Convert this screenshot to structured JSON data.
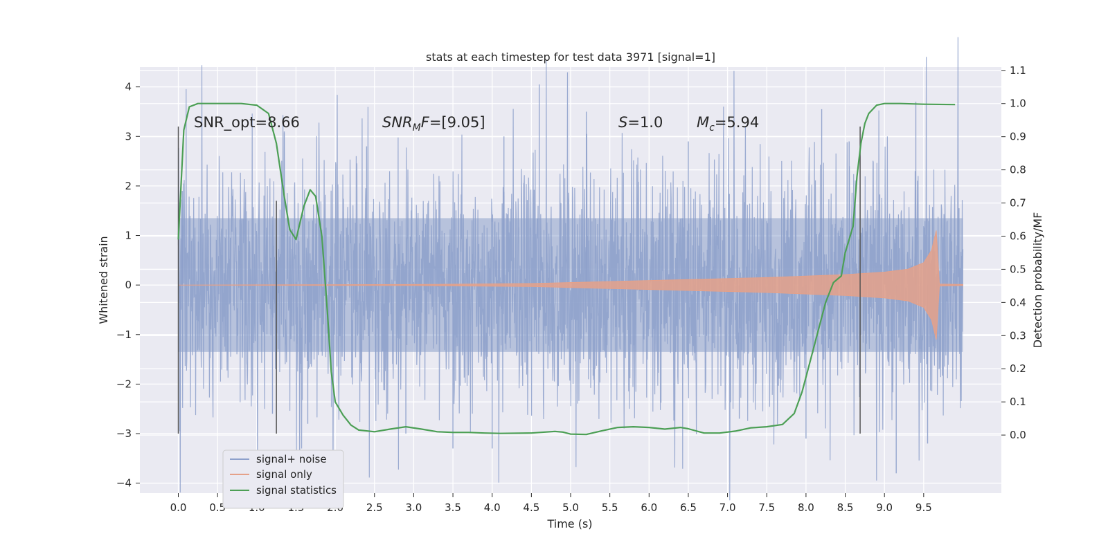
{
  "chart_data": {
    "type": "line",
    "title": "stats at each timestep for test data 3971 [signal=1]",
    "xlabel": "Time (s)",
    "ylabel": "Whitened strain",
    "y2label": "Detection probability/MF",
    "xlim": [
      -0.49,
      10.49
    ],
    "ylim": [
      -4.2,
      4.4
    ],
    "y2lim": [
      -0.175,
      1.11
    ],
    "x_ticks": [
      0.0,
      0.5,
      1.0,
      1.5,
      2.0,
      2.5,
      3.0,
      3.5,
      4.0,
      4.5,
      5.0,
      5.5,
      6.0,
      6.5,
      7.0,
      7.5,
      8.0,
      8.5,
      9.0,
      9.5
    ],
    "x_tick_labels": [
      "0.0",
      "0.5",
      "1.0",
      "1.5",
      "2.0",
      "2.5",
      "3.0",
      "3.5",
      "4.0",
      "4.5",
      "5.0",
      "5.5",
      "6.0",
      "6.5",
      "7.0",
      "7.5",
      "8.0",
      "8.5",
      "9.0",
      "9.5"
    ],
    "y_ticks": [
      4,
      3,
      2,
      1,
      0,
      -1,
      -2,
      -3,
      -4
    ],
    "y_tick_labels": [
      "4",
      "3",
      "2",
      "1",
      "0",
      "−1",
      "−2",
      "−3",
      "−4"
    ],
    "y2_ticks": [
      1.1,
      1.0,
      0.9,
      0.8,
      0.7,
      0.6,
      0.5,
      0.4,
      0.3,
      0.2,
      0.1,
      0.0
    ],
    "y2_tick_labels": [
      "1.1",
      "1.0",
      "0.9",
      "0.8",
      "0.7",
      "0.6",
      "0.5",
      "0.4",
      "0.3",
      "0.2",
      "0.1",
      "0.0"
    ],
    "grid": true,
    "legend_position": "bottom-left",
    "annotations": {
      "snr_opt": "SNR_opt=8.66",
      "snr_mf_name": "SNR",
      "snr_mf_sub": "M",
      "snr_mf_suffix": "F",
      "snr_mf_value": "=[9.05]",
      "s_name": "S",
      "s_value": "=1.0",
      "mc_name": "M",
      "mc_sub": "c",
      "mc_value": "=5.94"
    },
    "vertical_markers": [
      {
        "x": 0.0,
        "y": [
          -3.0,
          3.2
        ]
      },
      {
        "x": 1.25,
        "y": [
          -3.0,
          1.7
        ]
      },
      {
        "x": 8.69,
        "y": [
          -3.0,
          3.2
        ]
      }
    ],
    "series": [
      {
        "name": "signal+ noise",
        "color": "#8da0cb",
        "note": "dense noise, roughly uniform envelope",
        "x_range": [
          0.0,
          10.0
        ],
        "envelope_typical": 1.35,
        "peaks": [
          [
            0.02,
            -2.95
          ],
          [
            0.05,
            1.9
          ],
          [
            1.2,
            -2.6
          ],
          [
            1.35,
            3.1
          ],
          [
            1.65,
            -2.8
          ],
          [
            2.4,
            2.8
          ],
          [
            2.9,
            -3.0
          ],
          [
            3.5,
            -3.3
          ],
          [
            4.0,
            -3.3
          ],
          [
            4.15,
            3.0
          ],
          [
            4.6,
            4.05
          ],
          [
            5.2,
            3.5
          ],
          [
            6.5,
            2.9
          ],
          [
            7.15,
            -2.7
          ],
          [
            8.0,
            -3.1
          ],
          [
            8.2,
            3.55
          ],
          [
            8.55,
            2.9
          ],
          [
            9.15,
            -3.8
          ],
          [
            9.4,
            3.7
          ],
          [
            9.55,
            -3.2
          ],
          [
            9.95,
            1.55
          ]
        ]
      },
      {
        "name": "signal only",
        "color": "#e5a189",
        "note": "chirp starting near zero and growing toward 9.66 s",
        "t": [
          0.0,
          3.0,
          4.5,
          5.5,
          6.5,
          7.5,
          8.0,
          8.5,
          9.0,
          9.3,
          9.5,
          9.6,
          9.66,
          9.7,
          10.0
        ],
        "amplitude": [
          0.0,
          0.01,
          0.03,
          0.07,
          0.11,
          0.15,
          0.18,
          0.21,
          0.26,
          0.32,
          0.45,
          0.7,
          1.1,
          0.02,
          0.01
        ]
      },
      {
        "name": "signal statistics",
        "color": "#4c9f55",
        "axis": "right",
        "x": [
          0.0,
          0.07,
          0.14,
          0.25,
          0.5,
          0.8,
          1.0,
          1.15,
          1.25,
          1.35,
          1.42,
          1.5,
          1.6,
          1.68,
          1.75,
          1.83,
          1.9,
          1.95,
          2.0,
          2.1,
          2.2,
          2.3,
          2.5,
          2.7,
          2.9,
          3.1,
          3.3,
          3.5,
          3.7,
          3.9,
          4.1,
          4.5,
          4.8,
          4.9,
          5.0,
          5.2,
          5.4,
          5.6,
          5.8,
          6.0,
          6.2,
          6.4,
          6.5,
          6.7,
          6.9,
          7.1,
          7.3,
          7.5,
          7.7,
          7.85,
          7.95,
          8.05,
          8.15,
          8.25,
          8.35,
          8.45,
          8.5,
          8.6,
          8.65,
          8.7,
          8.75,
          8.8,
          8.9,
          9.0,
          9.2,
          9.5,
          9.9
        ],
        "y": [
          0.59,
          0.92,
          0.99,
          1.0,
          1.0,
          1.0,
          0.995,
          0.97,
          0.88,
          0.72,
          0.62,
          0.59,
          0.69,
          0.74,
          0.72,
          0.6,
          0.37,
          0.19,
          0.1,
          0.06,
          0.03,
          0.015,
          0.01,
          0.018,
          0.025,
          0.018,
          0.01,
          0.008,
          0.008,
          0.006,
          0.005,
          0.006,
          0.011,
          0.009,
          0.003,
          0.002,
          0.013,
          0.023,
          0.025,
          0.023,
          0.018,
          0.023,
          0.019,
          0.006,
          0.006,
          0.012,
          0.022,
          0.025,
          0.032,
          0.065,
          0.13,
          0.22,
          0.31,
          0.4,
          0.46,
          0.48,
          0.55,
          0.63,
          0.78,
          0.88,
          0.94,
          0.97,
          0.995,
          1.0,
          1.0,
          0.998,
          0.997
        ]
      }
    ]
  }
}
